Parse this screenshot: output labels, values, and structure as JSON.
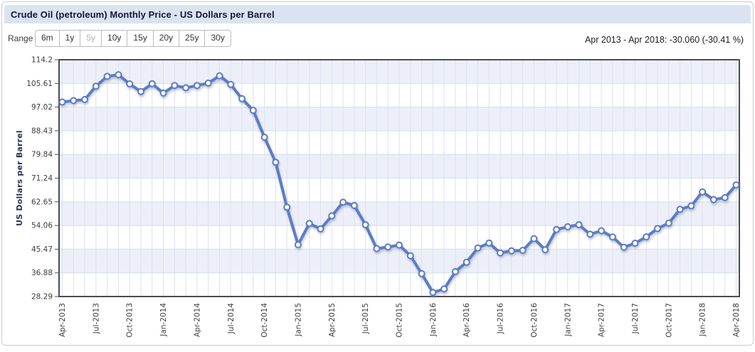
{
  "title": "Crude Oil (petroleum) Monthly Price - US Dollars per Barrel",
  "range": {
    "label": "Range",
    "options": [
      "6m",
      "1y",
      "5y",
      "10y",
      "15y",
      "20y",
      "25y",
      "30y"
    ],
    "disabled_option": "5y"
  },
  "summary": "Apr 2013 - Apr 2018: -30.060 (-30.41 %)",
  "chart_data": {
    "type": "line",
    "title": "Crude Oil (petroleum) Monthly Price",
    "xlabel": "",
    "ylabel": "US Dollars per Barrel",
    "ylim": [
      28.29,
      114.2
    ],
    "yticks": [
      114.2,
      105.61,
      97.02,
      88.43,
      79.84,
      71.24,
      62.65,
      54.06,
      45.47,
      36.88,
      28.29
    ],
    "x_ticklabels": [
      "Apr-2013",
      "Jul-2013",
      "Oct-2013",
      "Jan-2014",
      "Apr-2014",
      "Jul-2014",
      "Oct-2014",
      "Jan-2015",
      "Apr-2015",
      "Jul-2015",
      "Oct-2015",
      "Jan-2016",
      "Apr-2016",
      "Jul-2016",
      "Oct-2016",
      "Jan-2017",
      "Apr-2017",
      "Jul-2017",
      "Oct-2017",
      "Jan-2018",
      "Apr-2018"
    ],
    "x": [
      "Apr-2013",
      "May-2013",
      "Jun-2013",
      "Jul-2013",
      "Aug-2013",
      "Sep-2013",
      "Oct-2013",
      "Nov-2013",
      "Dec-2013",
      "Jan-2014",
      "Feb-2014",
      "Mar-2014",
      "Apr-2014",
      "May-2014",
      "Jun-2014",
      "Jul-2014",
      "Aug-2014",
      "Sep-2014",
      "Oct-2014",
      "Nov-2014",
      "Dec-2014",
      "Jan-2015",
      "Feb-2015",
      "Mar-2015",
      "Apr-2015",
      "May-2015",
      "Jun-2015",
      "Jul-2015",
      "Aug-2015",
      "Sep-2015",
      "Oct-2015",
      "Nov-2015",
      "Dec-2015",
      "Jan-2016",
      "Feb-2016",
      "Mar-2016",
      "Apr-2016",
      "May-2016",
      "Jun-2016",
      "Jul-2016",
      "Aug-2016",
      "Sep-2016",
      "Oct-2016",
      "Nov-2016",
      "Dec-2016",
      "Jan-2017",
      "Feb-2017",
      "Mar-2017",
      "Apr-2017",
      "May-2017",
      "Jun-2017",
      "Jul-2017",
      "Aug-2017",
      "Sep-2017",
      "Oct-2017",
      "Nov-2017",
      "Dec-2017",
      "Jan-2018",
      "Feb-2018",
      "Mar-2018",
      "Apr-2018"
    ],
    "series": [
      {
        "name": "US Dollars per Barrel",
        "values": [
          98.85,
          99.37,
          99.74,
          104.57,
          108.16,
          108.76,
          105.43,
          102.63,
          105.48,
          102.1,
          104.83,
          104.04,
          104.87,
          105.71,
          108.37,
          105.23,
          100.05,
          95.85,
          86.08,
          76.99,
          60.7,
          47.11,
          54.79,
          52.83,
          57.54,
          62.51,
          61.31,
          54.34,
          45.69,
          46.28,
          46.96,
          43.11,
          36.57,
          29.78,
          31.03,
          37.34,
          40.75,
          45.94,
          47.69,
          44.13,
          44.88,
          45.04,
          49.29,
          45.26,
          52.62,
          53.59,
          54.35,
          50.9,
          52.16,
          49.89,
          46.18,
          47.65,
          49.94,
          52.95,
          54.92,
          59.93,
          61.19,
          66.23,
          63.46,
          64.17,
          68.79
        ]
      }
    ],
    "grid": "vertical line per month, horizontal alternating bands per y division",
    "legend_position": "none",
    "colors": {
      "line": "#5b7cc3",
      "marker_fill": "#ffffff",
      "band": "#edeff8",
      "band_alt": "#ffffff",
      "gridline": "#dbe1f1",
      "hgridline": "#d6dcee",
      "plot_border": "#4c4c4c",
      "tick_text": "#3d3d3d",
      "axis_title_text": "#2e3156",
      "titlebar_bg": "#dbe3f1",
      "title_text": "#14163c"
    }
  }
}
